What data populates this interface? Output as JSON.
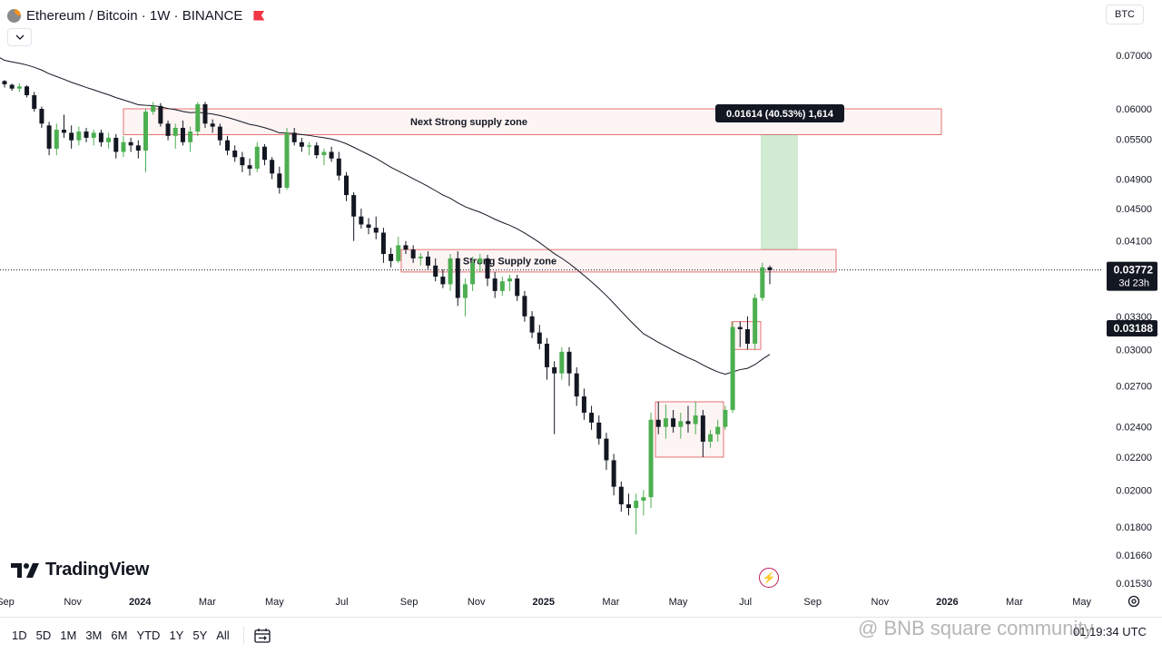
{
  "header": {
    "title": "Ethereum / Bitcoin · 1W · BINANCE",
    "currency": "BTC",
    "logo_icon": "eth-btc-icon"
  },
  "chart_data": {
    "type": "candlestick",
    "symbol": "ETHBTC",
    "interval": "1W",
    "exchange": "BINANCE",
    "price_scale": [
      "0.07000",
      "0.06000",
      "0.05500",
      "0.04900",
      "0.04500",
      "0.04100",
      "0.03300",
      "0.03000",
      "0.02700",
      "0.02400",
      "0.02200",
      "0.02000",
      "0.01800",
      "0.01660",
      "0.01530"
    ],
    "time_labels": [
      "Sep",
      "Nov",
      "2024",
      "Mar",
      "May",
      "Jul",
      "Sep",
      "Nov",
      "2025",
      "Mar",
      "May",
      "Jul",
      "Sep",
      "Nov",
      "2026",
      "Mar",
      "May"
    ],
    "last_price": "0.03772",
    "countdown": "3d 23h",
    "ma_value": "0.03188",
    "ma_color": "#131722",
    "up_color": "#4caf50",
    "down_color": "#131722",
    "zone_color": "#e57373",
    "candles": [
      [
        0.065,
        0.0652,
        0.0638,
        0.0644
      ],
      [
        0.0643,
        0.0645,
        0.0632,
        0.0636
      ],
      [
        0.0636,
        0.0646,
        0.063,
        0.064
      ],
      [
        0.064,
        0.0642,
        0.062,
        0.0624
      ],
      [
        0.0624,
        0.063,
        0.0595,
        0.06
      ],
      [
        0.06,
        0.0604,
        0.0568,
        0.0575
      ],
      [
        0.0572,
        0.0578,
        0.0525,
        0.0535
      ],
      [
        0.0535,
        0.0575,
        0.0525,
        0.0565
      ],
      [
        0.0565,
        0.059,
        0.0552,
        0.056
      ],
      [
        0.056,
        0.0572,
        0.0535,
        0.0548
      ],
      [
        0.0548,
        0.057,
        0.054,
        0.0562
      ],
      [
        0.0562,
        0.0568,
        0.0545,
        0.0552
      ],
      [
        0.0552,
        0.0565,
        0.054,
        0.056
      ],
      [
        0.056,
        0.0565,
        0.0538,
        0.0545
      ],
      [
        0.0545,
        0.056,
        0.0535,
        0.0552
      ],
      [
        0.0552,
        0.0558,
        0.052,
        0.053
      ],
      [
        0.053,
        0.0555,
        0.0522,
        0.0545
      ],
      [
        0.0545,
        0.0552,
        0.053,
        0.054
      ],
      [
        0.054,
        0.0548,
        0.052,
        0.0532
      ],
      [
        0.0532,
        0.06,
        0.05,
        0.0595
      ],
      [
        0.0595,
        0.0612,
        0.059,
        0.0605
      ],
      [
        0.0605,
        0.061,
        0.057,
        0.0575
      ],
      [
        0.0575,
        0.058,
        0.0548,
        0.0555
      ],
      [
        0.0555,
        0.0575,
        0.0535,
        0.0568
      ],
      [
        0.0568,
        0.058,
        0.054,
        0.0545
      ],
      [
        0.0545,
        0.057,
        0.053,
        0.0562
      ],
      [
        0.0562,
        0.0612,
        0.0555,
        0.0608
      ],
      [
        0.0608,
        0.0612,
        0.0568,
        0.0575
      ],
      [
        0.0575,
        0.0582,
        0.056,
        0.057
      ],
      [
        0.057,
        0.0575,
        0.054,
        0.0548
      ],
      [
        0.0548,
        0.0555,
        0.0525,
        0.0532
      ],
      [
        0.0532,
        0.054,
        0.0515,
        0.0522
      ],
      [
        0.0522,
        0.053,
        0.05,
        0.051
      ],
      [
        0.051,
        0.052,
        0.0495,
        0.0505
      ],
      [
        0.0505,
        0.0545,
        0.05,
        0.0538
      ],
      [
        0.0538,
        0.0542,
        0.051,
        0.0518
      ],
      [
        0.0518,
        0.0522,
        0.049,
        0.0498
      ],
      [
        0.0498,
        0.0508,
        0.047,
        0.0478
      ],
      [
        0.0478,
        0.0568,
        0.0475,
        0.056
      ],
      [
        0.056,
        0.0568,
        0.054,
        0.0545
      ],
      [
        0.0545,
        0.0552,
        0.053,
        0.0538
      ],
      [
        0.0538,
        0.0545,
        0.0525,
        0.054
      ],
      [
        0.054,
        0.0545,
        0.052,
        0.0525
      ],
      [
        0.0525,
        0.0535,
        0.051,
        0.053
      ],
      [
        0.053,
        0.0538,
        0.0515,
        0.052
      ],
      [
        0.052,
        0.053,
        0.0488,
        0.0495
      ],
      [
        0.0495,
        0.05,
        0.046,
        0.0468
      ],
      [
        0.0468,
        0.0472,
        0.041,
        0.044
      ],
      [
        0.044,
        0.045,
        0.0425,
        0.043
      ],
      [
        0.043,
        0.0438,
        0.0418,
        0.0426
      ],
      [
        0.0426,
        0.044,
        0.0412,
        0.042
      ],
      [
        0.042,
        0.0426,
        0.0385,
        0.0395
      ],
      [
        0.0395,
        0.0402,
        0.038,
        0.0387
      ],
      [
        0.0387,
        0.0415,
        0.0385,
        0.0405
      ],
      [
        0.0405,
        0.041,
        0.0395,
        0.04
      ],
      [
        0.04,
        0.0405,
        0.0385,
        0.039
      ],
      [
        0.039,
        0.0396,
        0.0382,
        0.0392
      ],
      [
        0.0392,
        0.0398,
        0.0378,
        0.0382
      ],
      [
        0.0382,
        0.039,
        0.0365,
        0.037
      ],
      [
        0.037,
        0.0378,
        0.0358,
        0.0362
      ],
      [
        0.0362,
        0.0395,
        0.0355,
        0.039
      ],
      [
        0.039,
        0.0398,
        0.034,
        0.0348
      ],
      [
        0.0348,
        0.0368,
        0.033,
        0.0362
      ],
      [
        0.0362,
        0.0392,
        0.0355,
        0.0385
      ],
      [
        0.0385,
        0.0395,
        0.0375,
        0.039
      ],
      [
        0.039,
        0.0394,
        0.036,
        0.0368
      ],
      [
        0.0368,
        0.0375,
        0.0348,
        0.0355
      ],
      [
        0.0355,
        0.037,
        0.035,
        0.0365
      ],
      [
        0.0365,
        0.0372,
        0.0355,
        0.0368
      ],
      [
        0.0368,
        0.0372,
        0.0345,
        0.035
      ],
      [
        0.035,
        0.0355,
        0.0325,
        0.033
      ],
      [
        0.033,
        0.0335,
        0.031,
        0.0315
      ],
      [
        0.0315,
        0.0322,
        0.03,
        0.0305
      ],
      [
        0.0305,
        0.031,
        0.0275,
        0.0285
      ],
      [
        0.0285,
        0.029,
        0.0235,
        0.028
      ],
      [
        0.028,
        0.0302,
        0.0275,
        0.0298
      ],
      [
        0.0298,
        0.0302,
        0.027,
        0.028
      ],
      [
        0.028,
        0.0285,
        0.0255,
        0.0262
      ],
      [
        0.0262,
        0.0268,
        0.0245,
        0.025
      ],
      [
        0.025,
        0.0255,
        0.0238,
        0.0243
      ],
      [
        0.0243,
        0.0248,
        0.0228,
        0.0232
      ],
      [
        0.0232,
        0.0236,
        0.0212,
        0.0218
      ],
      [
        0.0218,
        0.0222,
        0.0197,
        0.0202
      ],
      [
        0.0202,
        0.0205,
        0.0188,
        0.0192
      ],
      [
        0.0192,
        0.0198,
        0.0186,
        0.019
      ],
      [
        0.019,
        0.0198,
        0.0176,
        0.0194
      ],
      [
        0.0194,
        0.02,
        0.0186,
        0.0196
      ],
      [
        0.0196,
        0.025,
        0.019,
        0.0245
      ],
      [
        0.0245,
        0.0258,
        0.0235,
        0.024
      ],
      [
        0.024,
        0.0256,
        0.0232,
        0.0246
      ],
      [
        0.0246,
        0.0252,
        0.0236,
        0.024
      ],
      [
        0.024,
        0.025,
        0.0232,
        0.0244
      ],
      [
        0.0244,
        0.0255,
        0.0236,
        0.0242
      ],
      [
        0.0242,
        0.0258,
        0.0235,
        0.0248
      ],
      [
        0.0248,
        0.0252,
        0.022,
        0.023
      ],
      [
        0.023,
        0.0238,
        0.0226,
        0.0235
      ],
      [
        0.0235,
        0.0245,
        0.023,
        0.024
      ],
      [
        0.024,
        0.0255,
        0.0238,
        0.0252
      ],
      [
        0.0252,
        0.0325,
        0.025,
        0.032
      ],
      [
        0.032,
        0.0325,
        0.0302,
        0.0318
      ],
      [
        0.0318,
        0.033,
        0.03,
        0.0305
      ],
      [
        0.0305,
        0.0352,
        0.03,
        0.0348
      ],
      [
        0.0348,
        0.0385,
        0.0345,
        0.038
      ],
      [
        0.038,
        0.0382,
        0.0362,
        0.0377
      ]
    ],
    "zones": [
      {
        "label": "Next Strong supply zone",
        "top": 0.06,
        "bottom": 0.0557
      },
      {
        "label": "Strong Supply zone",
        "top": 0.04,
        "bottom": 0.0375
      },
      {
        "label": "",
        "top": 0.0258,
        "bottom": 0.022
      },
      {
        "label": "",
        "top": 0.0325,
        "bottom": 0.03
      }
    ],
    "measure_label": "0.01614 (40.53%) 1,614"
  },
  "branding": {
    "tradingview": "TradingView"
  },
  "toolbar": {
    "ranges": [
      "1D",
      "5D",
      "1M",
      "3M",
      "6M",
      "YTD",
      "1Y",
      "5Y",
      "All"
    ],
    "calendar_icon": "calendar-range-icon"
  },
  "footer": {
    "watermark": "@ BNB square community",
    "clock": "01:19:34 UTC"
  }
}
